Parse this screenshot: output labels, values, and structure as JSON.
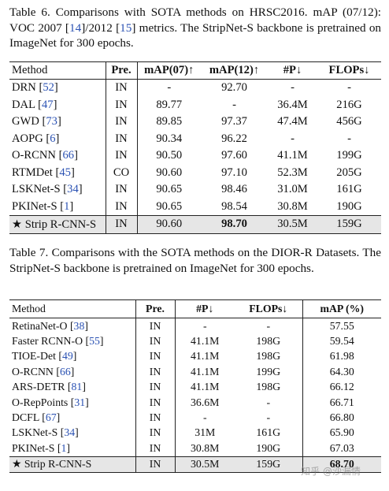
{
  "table1": {
    "caption_parts": [
      "Table 6. Comparisons with SOTA methods on HRSC2016. mAP (07/12): VOC 2007 [",
      "14",
      "]/2012 [",
      "15",
      "] metrics. The StripNet-S backbone is pretrained on ImageNet for 300 epochs."
    ],
    "headers": [
      "Method",
      "Pre.",
      "mAP(07)↑",
      "mAP(12)↑",
      "#P↓",
      "FLOPs↓"
    ],
    "rows": [
      {
        "name": "DRN",
        "ref": "52",
        "cells": [
          "IN",
          "-",
          "92.70",
          "-",
          "-"
        ]
      },
      {
        "name": "DAL",
        "ref": "47",
        "cells": [
          "IN",
          "89.77",
          "-",
          "36.4M",
          "216G"
        ]
      },
      {
        "name": "GWD",
        "ref": "73",
        "cells": [
          "IN",
          "89.85",
          "97.37",
          "47.4M",
          "456G"
        ]
      },
      {
        "name": "AOPG",
        "ref": "6",
        "cells": [
          "IN",
          "90.34",
          "96.22",
          "-",
          "-"
        ]
      },
      {
        "name": "O-RCNN",
        "ref": "66",
        "cells": [
          "IN",
          "90.50",
          "97.60",
          "41.1M",
          "199G"
        ]
      },
      {
        "name": "RTMDet",
        "ref": "45",
        "cells": [
          "CO",
          "90.60",
          "97.10",
          "52.3M",
          "205G"
        ]
      },
      {
        "name": "LSKNet-S",
        "ref": "34",
        "cells": [
          "IN",
          "90.65",
          "98.46",
          "31.0M",
          "161G"
        ]
      },
      {
        "name": "PKINet-S",
        "ref": "1",
        "cells": [
          "IN",
          "90.65",
          "98.54",
          "30.8M",
          "190G"
        ]
      }
    ],
    "highlight": {
      "name": "★ Strip R-CNN-S",
      "cells": [
        "IN",
        "90.60",
        "98.70",
        "30.5M",
        "159G"
      ]
    }
  },
  "table2": {
    "caption": "Table 7. Comparisons with the SOTA methods on the DIOR-R Datasets. The StripNet-S backbone is pretrained on ImageNet for 300 epochs.",
    "headers": [
      "Method",
      "Pre.",
      "#P↓",
      "FLOPs↓",
      "mAP (%)"
    ],
    "rows": [
      {
        "name": "RetinaNet-O",
        "ref": "38",
        "cells": [
          "IN",
          "-",
          "-",
          "57.55"
        ]
      },
      {
        "name": "Faster RCNN-O",
        "ref": "55",
        "cells": [
          "IN",
          "41.1M",
          "198G",
          "59.54"
        ]
      },
      {
        "name": "TIOE-Det",
        "ref": "49",
        "cells": [
          "IN",
          "41.1M",
          "198G",
          "61.98"
        ]
      },
      {
        "name": "O-RCNN",
        "ref": "66",
        "cells": [
          "IN",
          "41.1M",
          "199G",
          "64.30"
        ]
      },
      {
        "name": "ARS-DETR",
        "ref": "81",
        "cells": [
          "IN",
          "41.1M",
          "198G",
          "66.12"
        ]
      },
      {
        "name": "O-RepPoints",
        "ref": "31",
        "cells": [
          "IN",
          "36.6M",
          "-",
          "66.71"
        ]
      },
      {
        "name": "DCFL",
        "ref": "67",
        "cells": [
          "IN",
          "-",
          "-",
          "66.80"
        ]
      },
      {
        "name": "LSKNet-S",
        "ref": "34",
        "cells": [
          "IN",
          "31M",
          "161G",
          "65.90"
        ]
      },
      {
        "name": "PKINet-S",
        "ref": "1",
        "cells": [
          "IN",
          "30.8M",
          "190G",
          "67.03"
        ]
      }
    ],
    "highlight": {
      "name": "★ Strip R-CNN-S",
      "cells": [
        "IN",
        "30.5M",
        "159G",
        "68.70"
      ]
    }
  },
  "watermark": "知乎 @沙漏情"
}
